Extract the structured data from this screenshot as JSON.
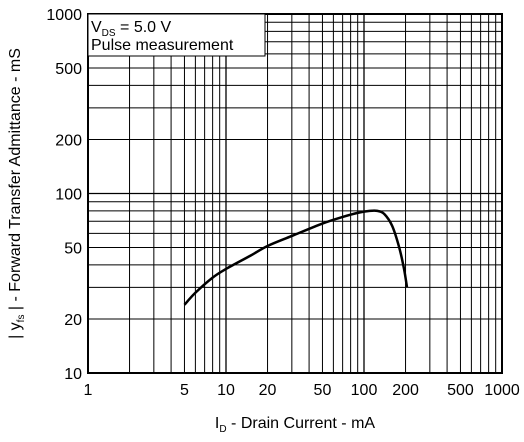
{
  "chart_data": {
    "type": "line",
    "title": "",
    "xlabel": {
      "prefix": "I",
      "subscript": "D",
      "rest": " - Drain Current - mA",
      "full": "ID - Drain Current - mA"
    },
    "ylabel": {
      "prefix": "| y",
      "subscript": "fs",
      "rest": " | - Forward Transfer Admittance - mS",
      "full": "| yfs | - Forward Transfer Admittance - mS"
    },
    "x_scale": "log",
    "y_scale": "log",
    "xlim": [
      1,
      1000
    ],
    "ylim": [
      10,
      1000
    ],
    "x_ticks": [
      1,
      5,
      10,
      20,
      50,
      100,
      200,
      500,
      1000
    ],
    "x_tick_labels": [
      "1",
      "5",
      "10",
      "20",
      "50",
      "100",
      "200",
      "500",
      "1000"
    ],
    "y_ticks": [
      10,
      20,
      50,
      100,
      200,
      500,
      1000
    ],
    "y_tick_labels": [
      "10",
      "20",
      "50",
      "100",
      "200",
      "500",
      "1000"
    ],
    "grid": true,
    "grid_style": "log minor and major lines",
    "annotations": [
      {
        "text_prefix": "V",
        "text_subscript": "DS",
        "text_rest": " = 5.0 V",
        "full": "VDS = 5.0 V"
      },
      {
        "text": "Pulse measurement"
      }
    ],
    "series": [
      {
        "color": "#000000",
        "points": [
          [
            5,
            24
          ],
          [
            6,
            28
          ],
          [
            8,
            34
          ],
          [
            10,
            38
          ],
          [
            15,
            45
          ],
          [
            20,
            51
          ],
          [
            30,
            58
          ],
          [
            50,
            68
          ],
          [
            70,
            74
          ],
          [
            90,
            78
          ],
          [
            110,
            80
          ],
          [
            125,
            80
          ],
          [
            140,
            77
          ],
          [
            160,
            66
          ],
          [
            180,
            50
          ],
          [
            195,
            38
          ],
          [
            205,
            30
          ]
        ]
      }
    ]
  },
  "colors": {
    "line": "#000000",
    "grid": "#000000",
    "background": "#ffffff"
  }
}
